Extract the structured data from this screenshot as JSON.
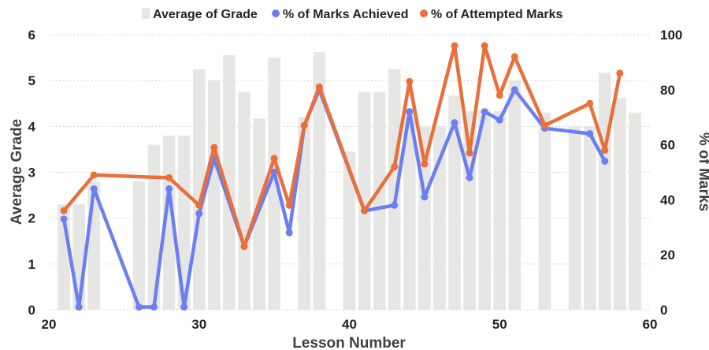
{
  "chart_data": {
    "type": "bar",
    "xlabel": "Lesson Number",
    "ylabel": "Average Grade",
    "y2label": "% of Marks",
    "xlim": [
      20,
      60
    ],
    "ylim": [
      0,
      6
    ],
    "y2lim": [
      0,
      100
    ],
    "xticks": [
      "20",
      "30",
      "40",
      "50",
      "60"
    ],
    "yticks": [
      "0",
      "1",
      "2",
      "3",
      "4",
      "5",
      "6"
    ],
    "y2ticks": [
      "0",
      "20",
      "40",
      "60",
      "80",
      "100"
    ],
    "legend_position": "top",
    "colors": {
      "bars": "#e6e6e4",
      "achieved": "#6b7ff0",
      "attempted": "#e96f3b",
      "grid": "#c8c8c8"
    },
    "series": [
      {
        "name": "Average of Grade",
        "type": "bar",
        "axis": "left",
        "x": [
          21,
          22,
          23,
          24,
          25,
          26,
          27,
          28,
          29,
          30,
          31,
          32,
          33,
          34,
          35,
          36,
          37,
          38,
          39,
          40,
          41,
          42,
          43,
          44,
          45,
          46,
          47,
          48,
          49,
          50,
          51,
          52,
          53,
          54,
          55,
          56,
          57,
          58,
          59
        ],
        "values": [
          2.3,
          2.3,
          2.8,
          0,
          0,
          2.8,
          3.6,
          3.8,
          3.8,
          5.25,
          5.0,
          5.55,
          4.75,
          4.17,
          5.5,
          0,
          4.2,
          5.62,
          0,
          3.45,
          4.75,
          4.75,
          5.25,
          4.4,
          4.0,
          4.0,
          4.67,
          4.33,
          4.35,
          4.33,
          5.0,
          0,
          4.3,
          0,
          4.0,
          4.0,
          5.17,
          4.62,
          4.3
        ]
      },
      {
        "name": "% of Marks Achieved",
        "type": "line",
        "axis": "right",
        "x": [
          21,
          22,
          23,
          26,
          27,
          28,
          29,
          30,
          31,
          33,
          35,
          36,
          37,
          38,
          41,
          43,
          44,
          45,
          47,
          48,
          49,
          50,
          51,
          53,
          56,
          57
        ],
        "values": [
          33,
          1,
          44,
          1,
          1,
          44,
          1,
          35,
          55,
          23,
          50,
          28,
          67,
          80,
          36,
          38,
          72,
          41,
          68,
          48,
          72,
          69,
          80,
          66,
          64,
          54
        ]
      },
      {
        "name": "% of Attempted Marks",
        "type": "line",
        "axis": "right",
        "x": [
          21,
          23,
          28,
          30,
          31,
          33,
          35,
          36,
          37,
          38,
          41,
          43,
          44,
          45,
          47,
          48,
          49,
          50,
          51,
          53,
          56,
          57,
          58
        ],
        "values": [
          36,
          49,
          48,
          38,
          59,
          23,
          55,
          38,
          67,
          81,
          36,
          52,
          83,
          53,
          96,
          57,
          96,
          78,
          92,
          67,
          75,
          58,
          86
        ]
      }
    ]
  }
}
